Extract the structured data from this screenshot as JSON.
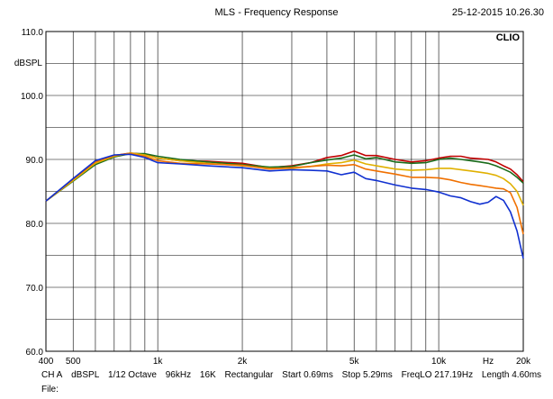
{
  "window": {
    "title": "MLS - Frequency Response",
    "datetime": "25-12-2015 10.26.30",
    "brand": "CLIO"
  },
  "status_bar": {
    "channel": "CH A",
    "unit": "dBSPL",
    "smoothing": "1/12 Octave",
    "sample_rate": "96kHz",
    "size": "16K",
    "window": "Rectangular",
    "start": "Start 0.69ms",
    "stop": "Stop 5.29ms",
    "freq_lo": "FreqLO 217.19Hz",
    "length": "Length 4.60ms",
    "file_label": "File:"
  },
  "chart_data": {
    "type": "line",
    "title": "MLS - Frequency Response",
    "xlabel": "Hz",
    "ylabel": "dBSPL",
    "xscale": "log",
    "xlim": [
      400,
      20000
    ],
    "ylim": [
      60,
      110
    ],
    "grid": true,
    "x_ticks": [
      {
        "value": 400,
        "label": "400"
      },
      {
        "value": 500,
        "label": "500"
      },
      {
        "value": 1000,
        "label": "1k"
      },
      {
        "value": 2000,
        "label": "2k"
      },
      {
        "value": 5000,
        "label": "5k"
      },
      {
        "value": 10000,
        "label": "10k"
      },
      {
        "value": 20000,
        "label": "20k"
      }
    ],
    "y_ticks": [
      {
        "value": 110,
        "label": "110.0"
      },
      {
        "value": 100,
        "label": "100.0"
      },
      {
        "value": 90,
        "label": "90.0"
      },
      {
        "value": 80,
        "label": "80.0"
      },
      {
        "value": 70,
        "label": "70.0"
      },
      {
        "value": 60,
        "label": "60.0"
      }
    ],
    "x": [
      400,
      500,
      600,
      700,
      800,
      900,
      1000,
      1200,
      1500,
      2000,
      2500,
      3000,
      3500,
      4000,
      4500,
      5000,
      5500,
      6000,
      7000,
      8000,
      9000,
      10000,
      11000,
      12000,
      13000,
      14000,
      15000,
      16000,
      17000,
      18000,
      19000,
      20000
    ],
    "series": [
      {
        "color": "#c00000",
        "values": [
          83.5,
          86.8,
          89.5,
          90.6,
          91.0,
          90.8,
          90.2,
          89.8,
          89.7,
          89.4,
          88.7,
          89.0,
          89.5,
          90.3,
          90.6,
          91.3,
          90.6,
          90.6,
          90.0,
          89.6,
          89.8,
          90.2,
          90.5,
          90.5,
          90.2,
          90.1,
          90.0,
          89.6,
          89.0,
          88.5,
          87.6,
          86.5
        ]
      },
      {
        "color": "#1a6b1a",
        "values": [
          83.5,
          86.6,
          89.2,
          90.4,
          90.9,
          90.9,
          90.5,
          90.0,
          89.6,
          89.2,
          88.8,
          88.9,
          89.5,
          89.9,
          90.2,
          90.7,
          90.1,
          90.3,
          89.6,
          89.4,
          89.5,
          90.0,
          90.2,
          90.0,
          89.8,
          89.6,
          89.4,
          89.0,
          88.5,
          88.0,
          87.2,
          86.3
        ]
      },
      {
        "color": "#e0b000",
        "values": [
          83.5,
          86.7,
          89.4,
          90.5,
          91.0,
          90.7,
          90.2,
          89.8,
          89.4,
          89.0,
          88.6,
          88.6,
          88.9,
          89.3,
          89.5,
          89.9,
          89.3,
          89.0,
          88.5,
          88.3,
          88.4,
          88.6,
          88.6,
          88.4,
          88.2,
          88.0,
          87.8,
          87.5,
          87.0,
          86.2,
          85.0,
          82.8
        ]
      },
      {
        "color": "#f07000",
        "values": [
          83.5,
          86.9,
          89.6,
          90.6,
          90.9,
          90.5,
          89.8,
          89.4,
          89.3,
          89.1,
          88.5,
          88.7,
          88.9,
          89.1,
          89.0,
          89.2,
          88.5,
          88.2,
          87.7,
          87.2,
          87.2,
          87.1,
          86.8,
          86.4,
          86.1,
          85.9,
          85.7,
          85.5,
          85.4,
          84.8,
          82.5,
          78.3
        ]
      },
      {
        "color": "#1030d0",
        "values": [
          83.5,
          87.0,
          89.8,
          90.7,
          90.8,
          90.3,
          89.5,
          89.3,
          89.0,
          88.7,
          88.2,
          88.4,
          88.3,
          88.2,
          87.6,
          88.0,
          87.0,
          86.7,
          86.0,
          85.5,
          85.3,
          84.9,
          84.3,
          84.0,
          83.4,
          83.0,
          83.3,
          84.2,
          83.6,
          81.8,
          78.8,
          74.5
        ]
      }
    ]
  }
}
